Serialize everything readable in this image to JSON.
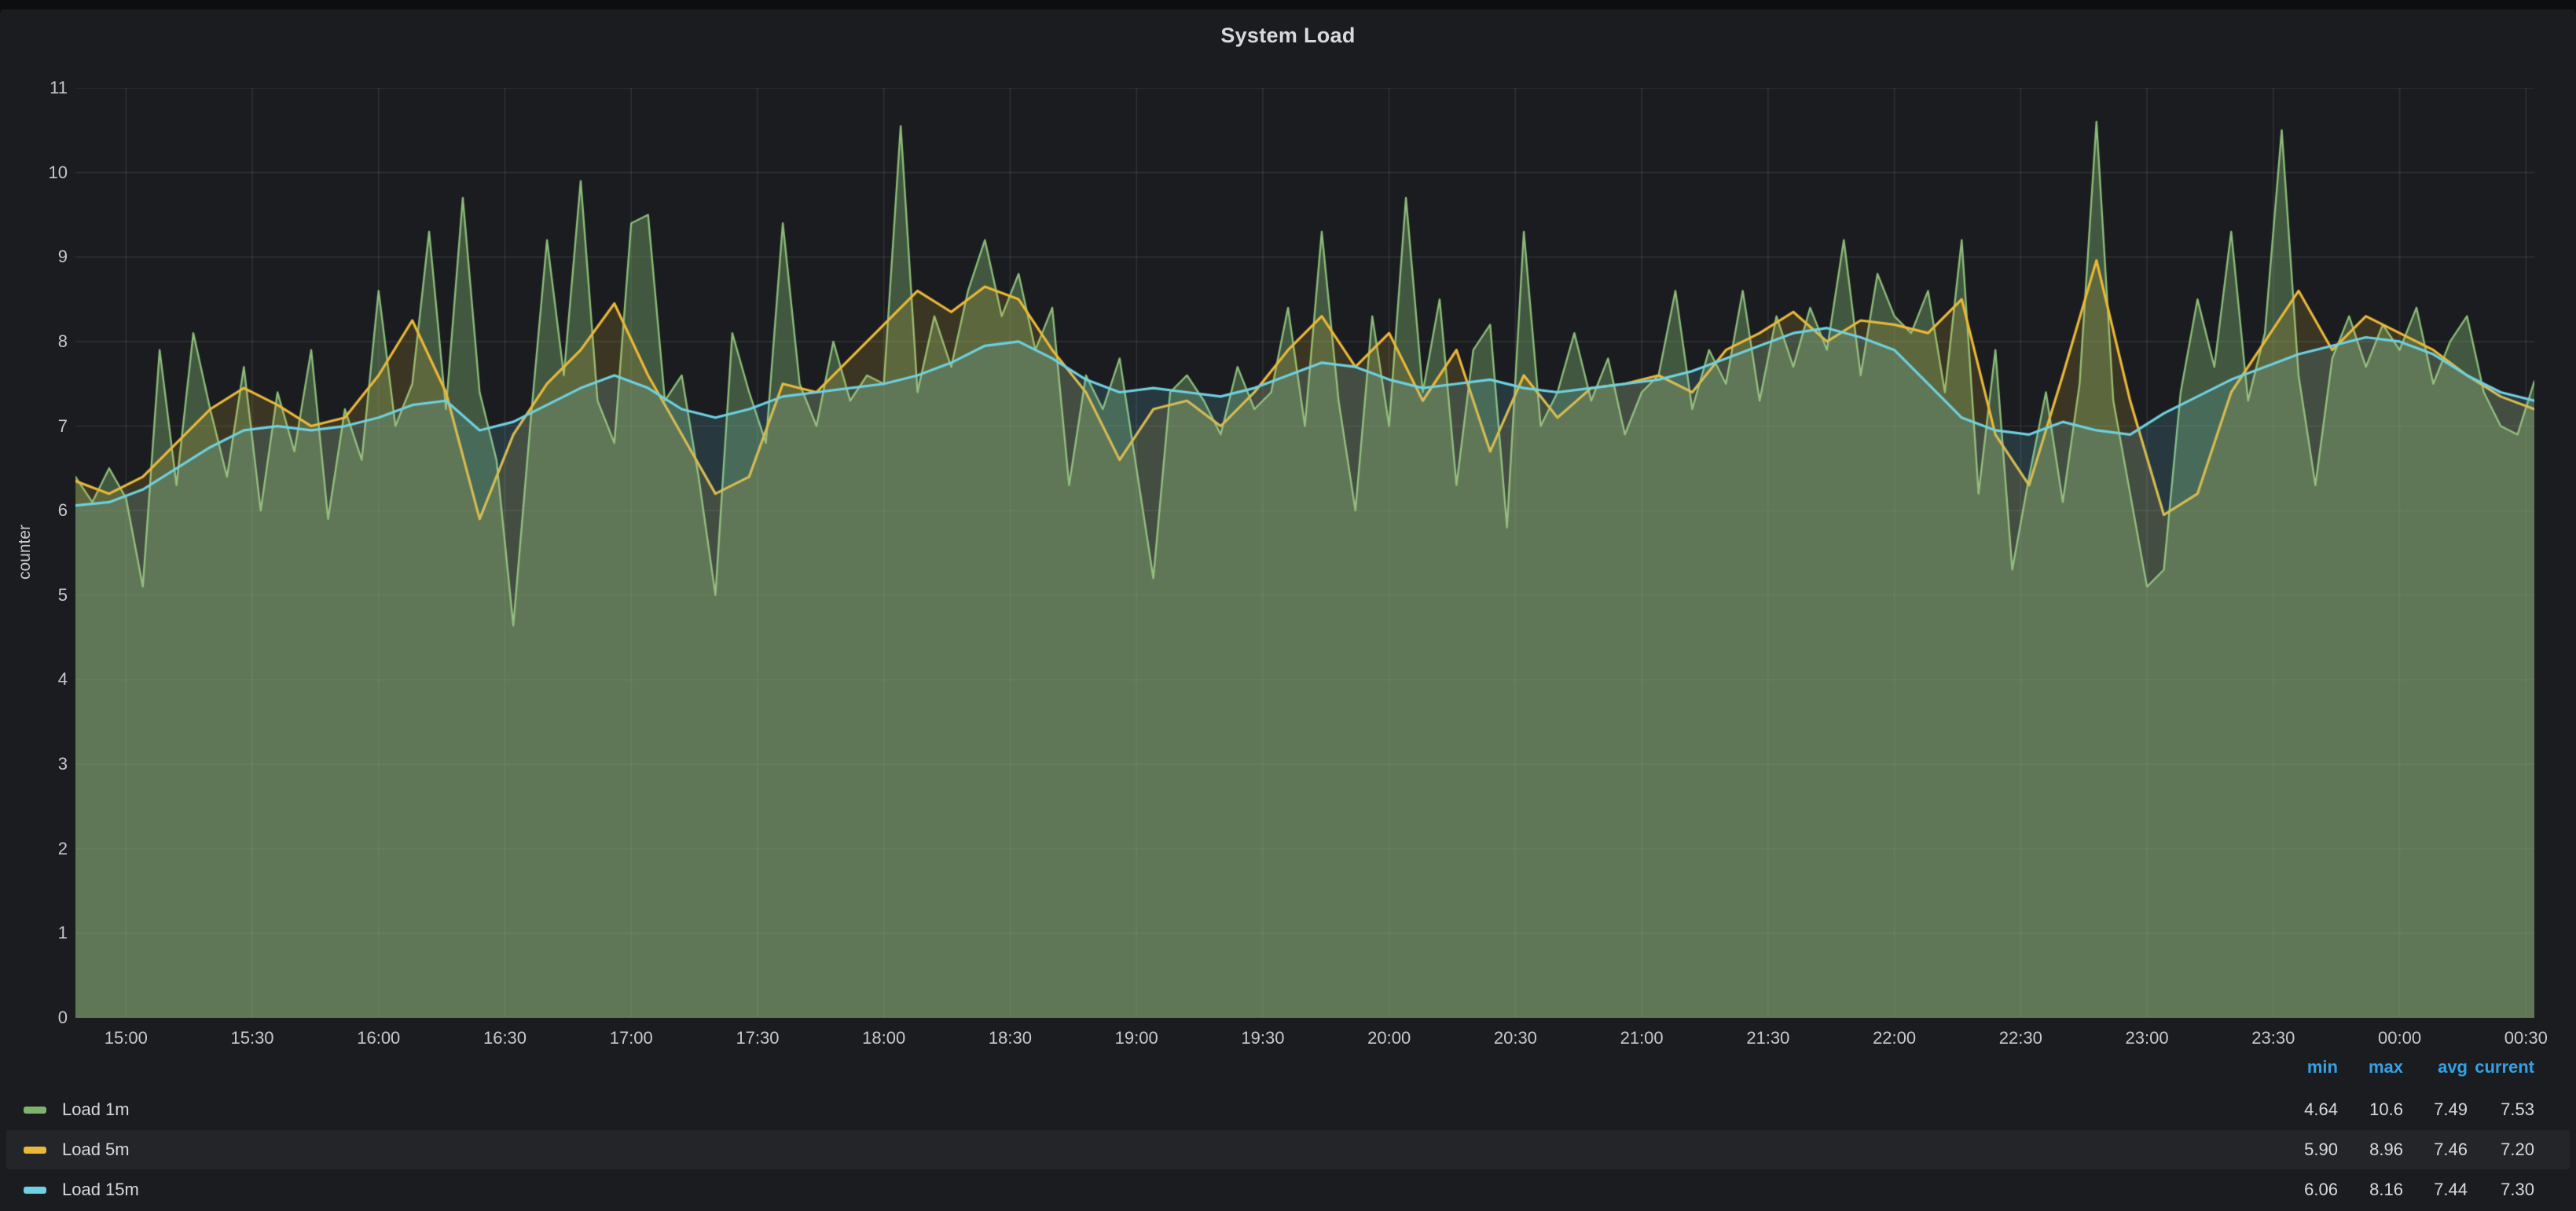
{
  "panel": {
    "title": "System Load"
  },
  "colors": {
    "page_background": "#0D0E10",
    "panel_background": "#1A1C20",
    "text": "#D8D9DA",
    "tick_text": "#C7C8CB",
    "header_accent": "#33A2E5",
    "grid": "#FFFFFF",
    "grid_alpha": 0.09,
    "load_1m_green": "#7EB26D",
    "load_5m_yellow": "#EAB839",
    "load_15m_blue": "#6ED0E0"
  },
  "chart_data": {
    "type": "area",
    "title": "System Load",
    "xlabel": "",
    "ylabel": "counter",
    "ylim": [
      0,
      11
    ],
    "grid": true,
    "legend_position": "bottom",
    "y_ticks": [
      "0",
      "1",
      "2",
      "3",
      "4",
      "5",
      "6",
      "7",
      "8",
      "9",
      "10",
      "11"
    ],
    "x_domain_minutes": [
      888,
      1472
    ],
    "x_ticks": [
      {
        "minute": 900,
        "label": "15:00"
      },
      {
        "minute": 930,
        "label": "15:30"
      },
      {
        "minute": 960,
        "label": "16:00"
      },
      {
        "minute": 990,
        "label": "16:30"
      },
      {
        "minute": 1020,
        "label": "17:00"
      },
      {
        "minute": 1050,
        "label": "17:30"
      },
      {
        "minute": 1080,
        "label": "18:00"
      },
      {
        "minute": 1110,
        "label": "18:30"
      },
      {
        "minute": 1140,
        "label": "19:00"
      },
      {
        "minute": 1170,
        "label": "19:30"
      },
      {
        "minute": 1200,
        "label": "20:00"
      },
      {
        "minute": 1230,
        "label": "20:30"
      },
      {
        "minute": 1260,
        "label": "21:00"
      },
      {
        "minute": 1290,
        "label": "21:30"
      },
      {
        "minute": 1320,
        "label": "22:00"
      },
      {
        "minute": 1350,
        "label": "22:30"
      },
      {
        "minute": 1380,
        "label": "23:00"
      },
      {
        "minute": 1410,
        "label": "23:30"
      },
      {
        "minute": 1440,
        "label": "00:00"
      },
      {
        "minute": 1470,
        "label": "00:30"
      }
    ],
    "series": [
      {
        "name": "Load 1m",
        "color": "#7EB26D",
        "line_color": "#8CBB79",
        "line_width": 2.4,
        "fill_alpha": 0.4,
        "start_minute": 888,
        "step_minutes": 4,
        "values": [
          6.4,
          6.1,
          6.5,
          6.15,
          5.1,
          7.9,
          6.3,
          8.1,
          7.2,
          6.4,
          7.7,
          6.0,
          7.4,
          6.7,
          7.9,
          5.9,
          7.2,
          6.6,
          8.6,
          7.0,
          7.5,
          9.3,
          7.2,
          9.7,
          7.4,
          6.6,
          4.64,
          7.0,
          9.2,
          7.6,
          9.9,
          7.3,
          6.8,
          9.4,
          9.5,
          7.3,
          7.6,
          6.4,
          5.0,
          8.1,
          7.4,
          6.8,
          9.4,
          7.5,
          7.0,
          8.0,
          7.3,
          7.6,
          7.5,
          10.55,
          7.4,
          8.3,
          7.7,
          8.6,
          9.2,
          8.3,
          8.8,
          7.9,
          8.4,
          6.3,
          7.6,
          7.2,
          7.8,
          6.5,
          5.2,
          7.4,
          7.6,
          7.3,
          6.9,
          7.7,
          7.2,
          7.4,
          8.4,
          7.0,
          9.3,
          7.3,
          6.0,
          8.3,
          7.0,
          9.7,
          7.4,
          8.5,
          6.3,
          7.9,
          8.2,
          5.8,
          9.3,
          7.0,
          7.4,
          8.1,
          7.3,
          7.8,
          6.9,
          7.4,
          7.6,
          8.6,
          7.2,
          7.9,
          7.5,
          8.6,
          7.3,
          8.3,
          7.7,
          8.4,
          7.9,
          9.2,
          7.6,
          8.8,
          8.3,
          8.1,
          8.6,
          7.4,
          9.2,
          6.2,
          7.9,
          5.3,
          6.4,
          7.4,
          6.1,
          7.5,
          10.6,
          7.3,
          6.2,
          5.1,
          5.3,
          7.4,
          8.5,
          7.7,
          9.3,
          7.3,
          8.1,
          10.5,
          7.6,
          6.3,
          7.8,
          8.3,
          7.7,
          8.2,
          7.9,
          8.4,
          7.5,
          8.0,
          8.3,
          7.4,
          7.0,
          6.9,
          7.53
        ]
      },
      {
        "name": "Load 5m",
        "color": "#EAB839",
        "line_color": "#EAB839",
        "line_width": 3.2,
        "fill_alpha": 0.16,
        "start_minute": 888,
        "step_minutes": 8,
        "values": [
          6.35,
          6.2,
          6.4,
          6.8,
          7.2,
          7.45,
          7.25,
          7.0,
          7.1,
          7.6,
          8.25,
          7.4,
          5.9,
          6.9,
          7.5,
          7.9,
          8.45,
          7.6,
          6.9,
          6.2,
          6.4,
          7.5,
          7.4,
          7.8,
          8.2,
          8.6,
          8.35,
          8.65,
          8.5,
          7.9,
          7.4,
          6.6,
          7.2,
          7.3,
          7.0,
          7.4,
          7.9,
          8.3,
          7.7,
          8.1,
          7.3,
          7.9,
          6.7,
          7.6,
          7.1,
          7.45,
          7.5,
          7.6,
          7.4,
          7.9,
          8.1,
          8.35,
          8.0,
          8.25,
          8.2,
          8.1,
          8.5,
          6.9,
          6.3,
          7.6,
          8.96,
          7.3,
          5.95,
          6.2,
          7.4,
          8.0,
          8.6,
          7.9,
          8.3,
          8.1,
          7.9,
          7.6,
          7.35,
          7.2
        ]
      },
      {
        "name": "Load 15m",
        "color": "#6ED0E0",
        "line_color": "#6ED0E0",
        "line_width": 3.2,
        "fill_alpha": 0.16,
        "start_minute": 888,
        "step_minutes": 8,
        "values": [
          6.06,
          6.1,
          6.25,
          6.5,
          6.75,
          6.95,
          7.0,
          6.95,
          7.0,
          7.1,
          7.25,
          7.3,
          6.95,
          7.05,
          7.25,
          7.45,
          7.6,
          7.45,
          7.2,
          7.1,
          7.2,
          7.35,
          7.4,
          7.45,
          7.5,
          7.6,
          7.75,
          7.95,
          8.0,
          7.8,
          7.55,
          7.4,
          7.45,
          7.4,
          7.35,
          7.45,
          7.6,
          7.75,
          7.7,
          7.55,
          7.45,
          7.5,
          7.55,
          7.45,
          7.4,
          7.45,
          7.5,
          7.55,
          7.65,
          7.8,
          7.95,
          8.1,
          8.16,
          8.05,
          7.9,
          7.5,
          7.1,
          6.95,
          6.9,
          7.05,
          6.95,
          6.9,
          7.15,
          7.35,
          7.55,
          7.7,
          7.85,
          7.95,
          8.05,
          8.0,
          7.85,
          7.6,
          7.4,
          7.3
        ]
      }
    ]
  },
  "legend": {
    "stat_headers": [
      "min",
      "max",
      "avg",
      "current"
    ],
    "rows": [
      {
        "label": "Load 1m",
        "color": "#7EB26D",
        "min": "4.64",
        "max": "10.6",
        "avg": "7.49",
        "current": "7.53",
        "highlight": false
      },
      {
        "label": "Load 5m",
        "color": "#EAB839",
        "min": "5.90",
        "max": "8.96",
        "avg": "7.46",
        "current": "7.20",
        "highlight": true
      },
      {
        "label": "Load 15m",
        "color": "#6ED0E0",
        "min": "6.06",
        "max": "8.16",
        "avg": "7.44",
        "current": "7.30",
        "highlight": false
      }
    ]
  }
}
